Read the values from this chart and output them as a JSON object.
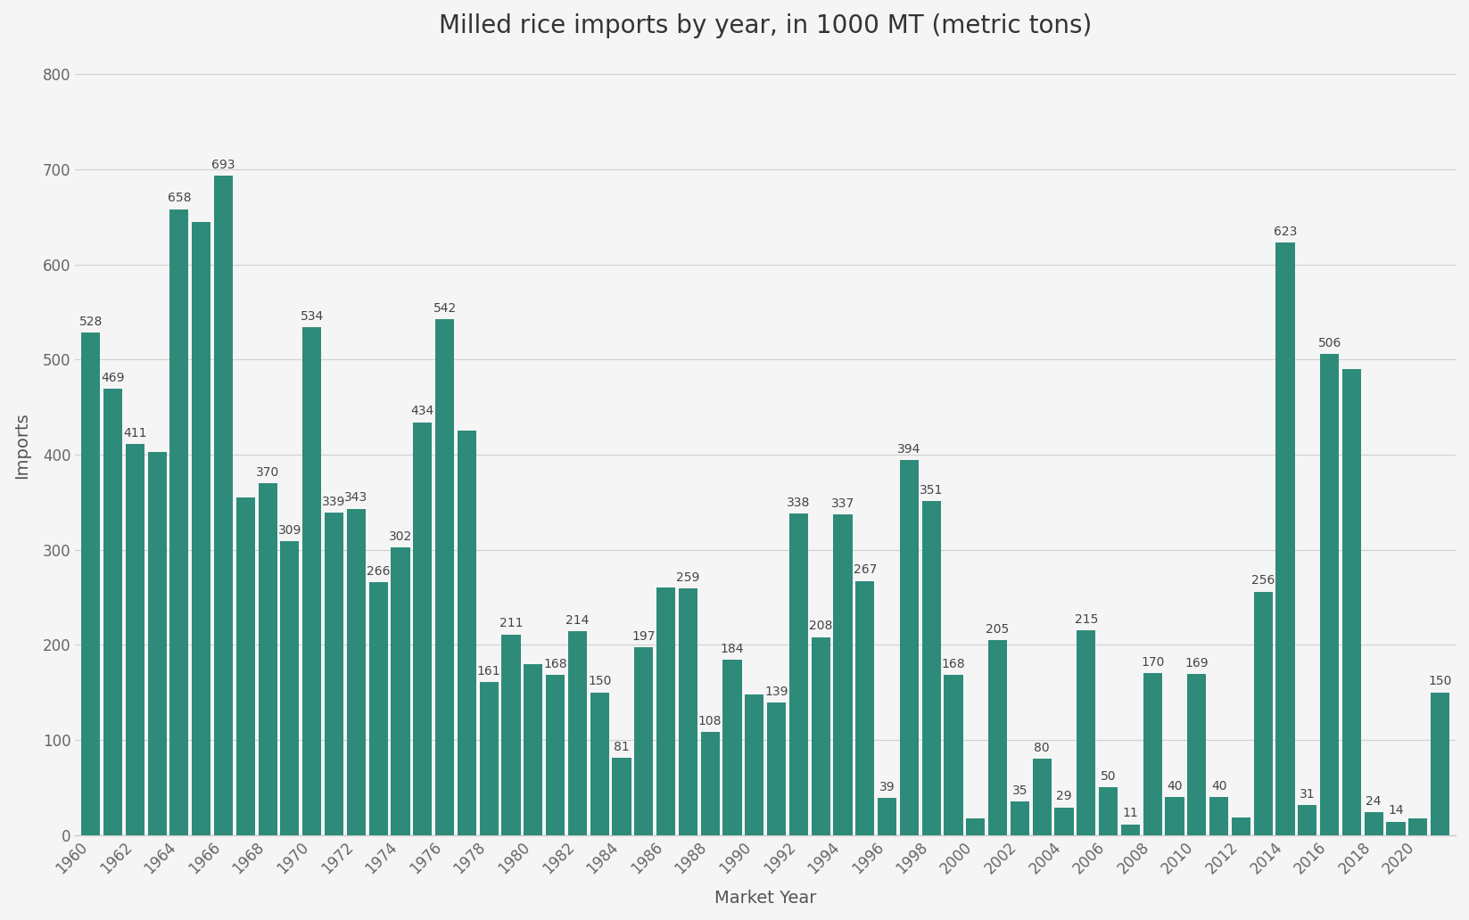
{
  "title": "Milled rice imports by year, in 1000 MT (metric tons)",
  "xlabel": "Market Year",
  "ylabel": "Imports",
  "bar_color": "#2e8b7a",
  "background_color": "#f5f5f5",
  "ylim": [
    0,
    820
  ],
  "yticks": [
    0,
    100,
    200,
    300,
    400,
    500,
    600,
    700,
    800
  ],
  "grid_color": "#d0d0d0",
  "title_fontsize": 20,
  "axis_label_fontsize": 14,
  "tick_fontsize": 12,
  "label_fontsize": 10,
  "year_value_map": {
    "1960": 528,
    "1961": 469,
    "1962": 411,
    "1963": 403,
    "1964": 658,
    "1965": 645,
    "1966": 693,
    "1967": 355,
    "1968": 370,
    "1969": 309,
    "1970": 534,
    "1971": 339,
    "1972": 343,
    "1973": 266,
    "1974": 302,
    "1975": 434,
    "1976": 542,
    "1977": 425,
    "1978": 161,
    "1979": 211,
    "1980": 180,
    "1981": 168,
    "1982": 214,
    "1983": 150,
    "1984": 81,
    "1985": 197,
    "1986": 260,
    "1987": 259,
    "1988": 108,
    "1989": 184,
    "1990": 148,
    "1991": 139,
    "1992": 338,
    "1993": 208,
    "1994": 337,
    "1995": 267,
    "1996": 39,
    "1997": 394,
    "1998": 351,
    "1999": 168,
    "2000": 17,
    "2001": 205,
    "2002": 35,
    "2003": 80,
    "2004": 29,
    "2005": 215,
    "2006": 50,
    "2007": 11,
    "2008": 170,
    "2009": 40,
    "2010": 169,
    "2011": 40,
    "2012": 18,
    "2013": 256,
    "2014": 623,
    "2015": 31,
    "2016": 506,
    "2017": 490,
    "2018": 24,
    "2019": 14,
    "2020": 17,
    "2021": 150
  }
}
